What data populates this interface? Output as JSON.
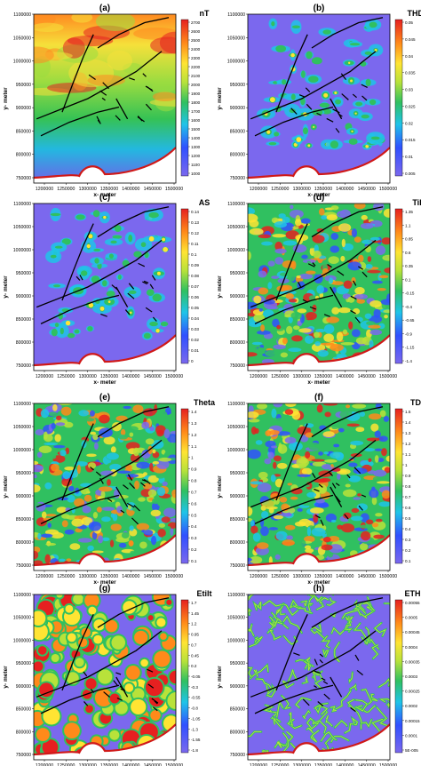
{
  "chart_data": [
    {
      "type": "heatmap",
      "panel": "(a)",
      "unit": "nT",
      "xlabel": "x- meter",
      "ylabel": "y- meter",
      "xticks": [
        "1200000",
        "1250000",
        "1300000",
        "1350000",
        "1400000",
        "1450000",
        "1500000"
      ],
      "yticks": [
        "1100000",
        "1050000",
        "1000000",
        "950000",
        "900000",
        "850000",
        "800000",
        "750000"
      ],
      "colorbar": [
        "2700",
        "2600",
        "2500",
        "2400",
        "2300",
        "2200",
        "2100",
        "2000",
        "1900",
        "1800",
        "1700",
        "1600",
        "1500",
        "1400",
        "1300",
        "1200",
        "1100",
        "1000"
      ],
      "style": "smooth"
    },
    {
      "type": "heatmap",
      "panel": "(b)",
      "unit": "THDR",
      "xlabel": "x- meter",
      "ylabel": "y- meter",
      "xticks": [
        "1200000",
        "1250000",
        "1300000",
        "1350000",
        "1400000",
        "1450000",
        "1500000"
      ],
      "yticks": [
        "1100000",
        "1050000",
        "1000000",
        "950000",
        "900000",
        "850000",
        "800000",
        "750000"
      ],
      "colorbar": [
        "0.05",
        "0.045",
        "0.04",
        "0.035",
        "0.03",
        "0.025",
        "0.02",
        "0.015",
        "0.01",
        "0.005"
      ],
      "style": "sparse"
    },
    {
      "type": "heatmap",
      "panel": "(c)",
      "unit": "AS",
      "xlabel": "x- meter",
      "ylabel": "y- meter",
      "xticks": [
        "1200000",
        "1250000",
        "1300000",
        "1350000",
        "1400000",
        "1450000",
        "1500000"
      ],
      "yticks": [
        "1100000",
        "1050000",
        "1000000",
        "950000",
        "900000",
        "850000",
        "800000",
        "750000"
      ],
      "colorbar": [
        "0.14",
        "0.13",
        "0.12",
        "0.11",
        "0.1",
        "0.09",
        "0.08",
        "0.07",
        "0.06",
        "0.05",
        "0.04",
        "0.03",
        "0.02",
        "0.01",
        "0"
      ],
      "style": "sparse"
    },
    {
      "type": "heatmap",
      "panel": "(d)",
      "unit": "Tilt",
      "xlabel": "x- meter",
      "ylabel": "y- meter",
      "xticks": [
        "1200000",
        "1250000",
        "1300000",
        "1350000",
        "1400000",
        "1450000",
        "1500000"
      ],
      "yticks": [
        "1100000",
        "1050000",
        "1000000",
        "950000",
        "900000",
        "850000",
        "800000",
        "750000"
      ],
      "colorbar": [
        "1.35",
        "1.1",
        "0.85",
        "0.6",
        "0.35",
        "0.1",
        "-0.15",
        "-0.4",
        "-0.65",
        "-0.9",
        "-1.15",
        "-1.4"
      ],
      "style": "busy"
    },
    {
      "type": "heatmap",
      "panel": "(e)",
      "unit": "Theta",
      "xlabel": "x- meter",
      "ylabel": "y- meter",
      "xticks": [
        "1200000",
        "1250000",
        "1300000",
        "1350000",
        "1400000",
        "1450000",
        "1500000"
      ],
      "yticks": [
        "1100000",
        "1050000",
        "1000000",
        "950000",
        "900000",
        "850000",
        "800000",
        "750000"
      ],
      "colorbar": [
        "1.4",
        "1.3",
        "1.2",
        "1.1",
        "1",
        "0.9",
        "0.8",
        "0.7",
        "0.6",
        "0.5",
        "0.4",
        "0.3",
        "0.2",
        "0.1"
      ],
      "style": "busy"
    },
    {
      "type": "heatmap",
      "panel": "(f)",
      "unit": "TDX",
      "xlabel": "x- meter",
      "ylabel": "y- meter",
      "xticks": [
        "1200000",
        "1250000",
        "1300000",
        "1350000",
        "1400000",
        "1450000",
        "1500000"
      ],
      "yticks": [
        "1100000",
        "1050000",
        "1000000",
        "950000",
        "900000",
        "850000",
        "800000",
        "750000"
      ],
      "colorbar": [
        "1.5",
        "1.4",
        "1.3",
        "1.2",
        "1.1",
        "1",
        "0.9",
        "0.8",
        "0.7",
        "0.6",
        "0.5",
        "0.4",
        "0.3",
        "0.2",
        "0.1"
      ],
      "style": "busy"
    },
    {
      "type": "heatmap",
      "panel": "(g)",
      "unit": "Etilt",
      "xlabel": "x- meter",
      "ylabel": "y- meter",
      "xticks": [
        "1200000",
        "1250000",
        "1300000",
        "1350000",
        "1400000",
        "1450000",
        "1500000"
      ],
      "yticks": [
        "1100000",
        "1050000",
        "1000000",
        "950000",
        "900000",
        "850000",
        "800000",
        "750000"
      ],
      "colorbar": [
        "1.7",
        "1.45",
        "1.2",
        "0.95",
        "0.7",
        "0.45",
        "0.2",
        "-0.05",
        "-0.3",
        "-0.55",
        "-0.8",
        "-1.05",
        "-1.3",
        "-1.55",
        "-1.8"
      ],
      "style": "blobs"
    },
    {
      "type": "heatmap",
      "panel": "(h)",
      "unit": "ETHDR",
      "xlabel": "x- meter",
      "ylabel": "y- meter",
      "xticks": [
        "1200000",
        "1250000",
        "1300000",
        "1350000",
        "1400000",
        "1450000",
        "1500000"
      ],
      "yticks": [
        "1100000",
        "1050000",
        "1000000",
        "950000",
        "900000",
        "850000",
        "800000",
        "750000"
      ],
      "colorbar": [
        "0.00055",
        "0.0005",
        "0.00045",
        "0.0004",
        "0.00035",
        "0.0003",
        "0.00025",
        "0.0002",
        "0.00015",
        "0.0001",
        "5E-005"
      ],
      "style": "worms"
    }
  ]
}
